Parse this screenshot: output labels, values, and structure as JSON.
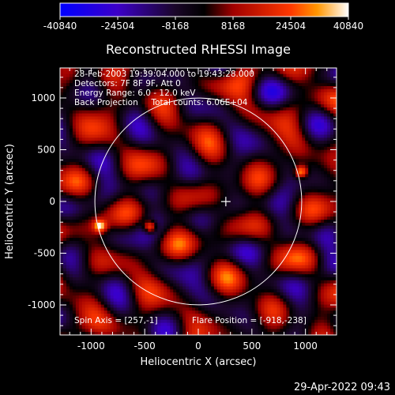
{
  "chart_data": {
    "type": "heatmap",
    "title": "Reconstructed RHESSI Image",
    "xlabel": "Heliocentric X (arcsec)",
    "ylabel": "Heliocentric Y (arcsec)",
    "xlim": [
      -1290,
      1290
    ],
    "ylim": [
      -1290,
      1290
    ],
    "x_ticks": [
      -1000,
      -500,
      0,
      500,
      1000
    ],
    "y_ticks": [
      -1000,
      -500,
      0,
      500,
      1000
    ],
    "colorbar": {
      "range": [
        -40840,
        40840
      ],
      "tick_values": [
        -40840,
        -24504,
        -8168,
        8168,
        24504,
        40840
      ],
      "tick_labels": [
        "-40840",
        "-24504",
        "-8168",
        "8168",
        "24504",
        "40840"
      ],
      "stops": [
        {
          "value": -40840,
          "color": "#0000ff"
        },
        {
          "value": -24504,
          "color": "#3c00c8"
        },
        {
          "value": -8168,
          "color": "#1a0628"
        },
        {
          "value": 0,
          "color": "#000000"
        },
        {
          "value": 8168,
          "color": "#a00000"
        },
        {
          "value": 24504,
          "color": "#ff3800"
        },
        {
          "value": 32000,
          "color": "#ff9600"
        },
        {
          "value": 40840,
          "color": "#ffffff"
        }
      ]
    },
    "solar_disk_radius": 965,
    "flare_sources": [
      {
        "x": -918,
        "y": -238
      },
      {
        "x": -450,
        "y": -245
      },
      {
        "x": 960,
        "y": 285
      }
    ],
    "center_marker": {
      "x": 257,
      "y": -1
    },
    "annotations": [
      "28-Feb-2003 19:39:04.000 to 19:43:28.000",
      "Detectors: 7F 8F 9F, Att 0",
      "Energy Range: 6.0 - 12.0 keV",
      "Back Projection     Total counts: 6.06E+04"
    ],
    "spin_axis": "Spin Axis = [257,-1]",
    "flare_position": "Flare Position = [-918,-238]"
  },
  "timestamp": "29-Apr-2022 09:43"
}
